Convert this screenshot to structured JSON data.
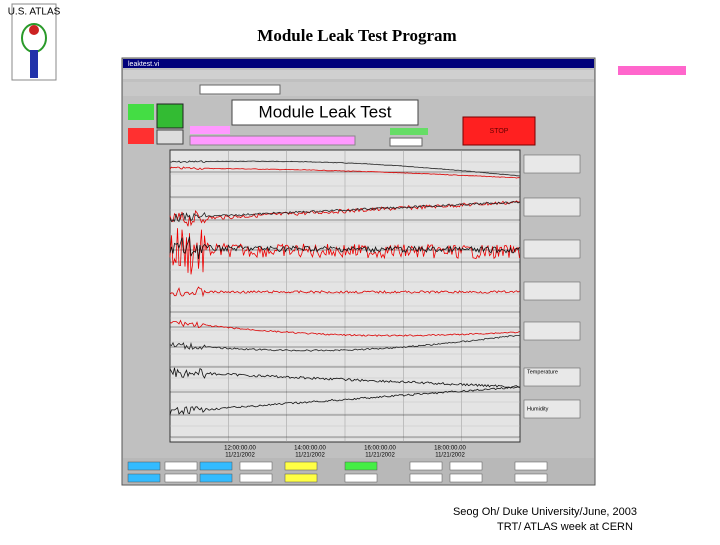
{
  "slide": {
    "logo": "U.S. ATLAS",
    "title": "Module Leak Test Program",
    "footer": [
      "Seog Oh/ Duke University/June, 2003",
      "TRT/ ATLAS week at CERN"
    ]
  },
  "window": {
    "title": "leaktest.vi",
    "panel_title": "Module Leak Test",
    "stop_button": "STOP",
    "x_axis_labels": [
      "12:00:00.00",
      "14:00:00.00",
      "16:00:00.00",
      "18:00:00.00"
    ],
    "x_axis_date": "11/21/2002",
    "legend_labels": [
      "Temperature",
      "Humidity"
    ]
  }
}
